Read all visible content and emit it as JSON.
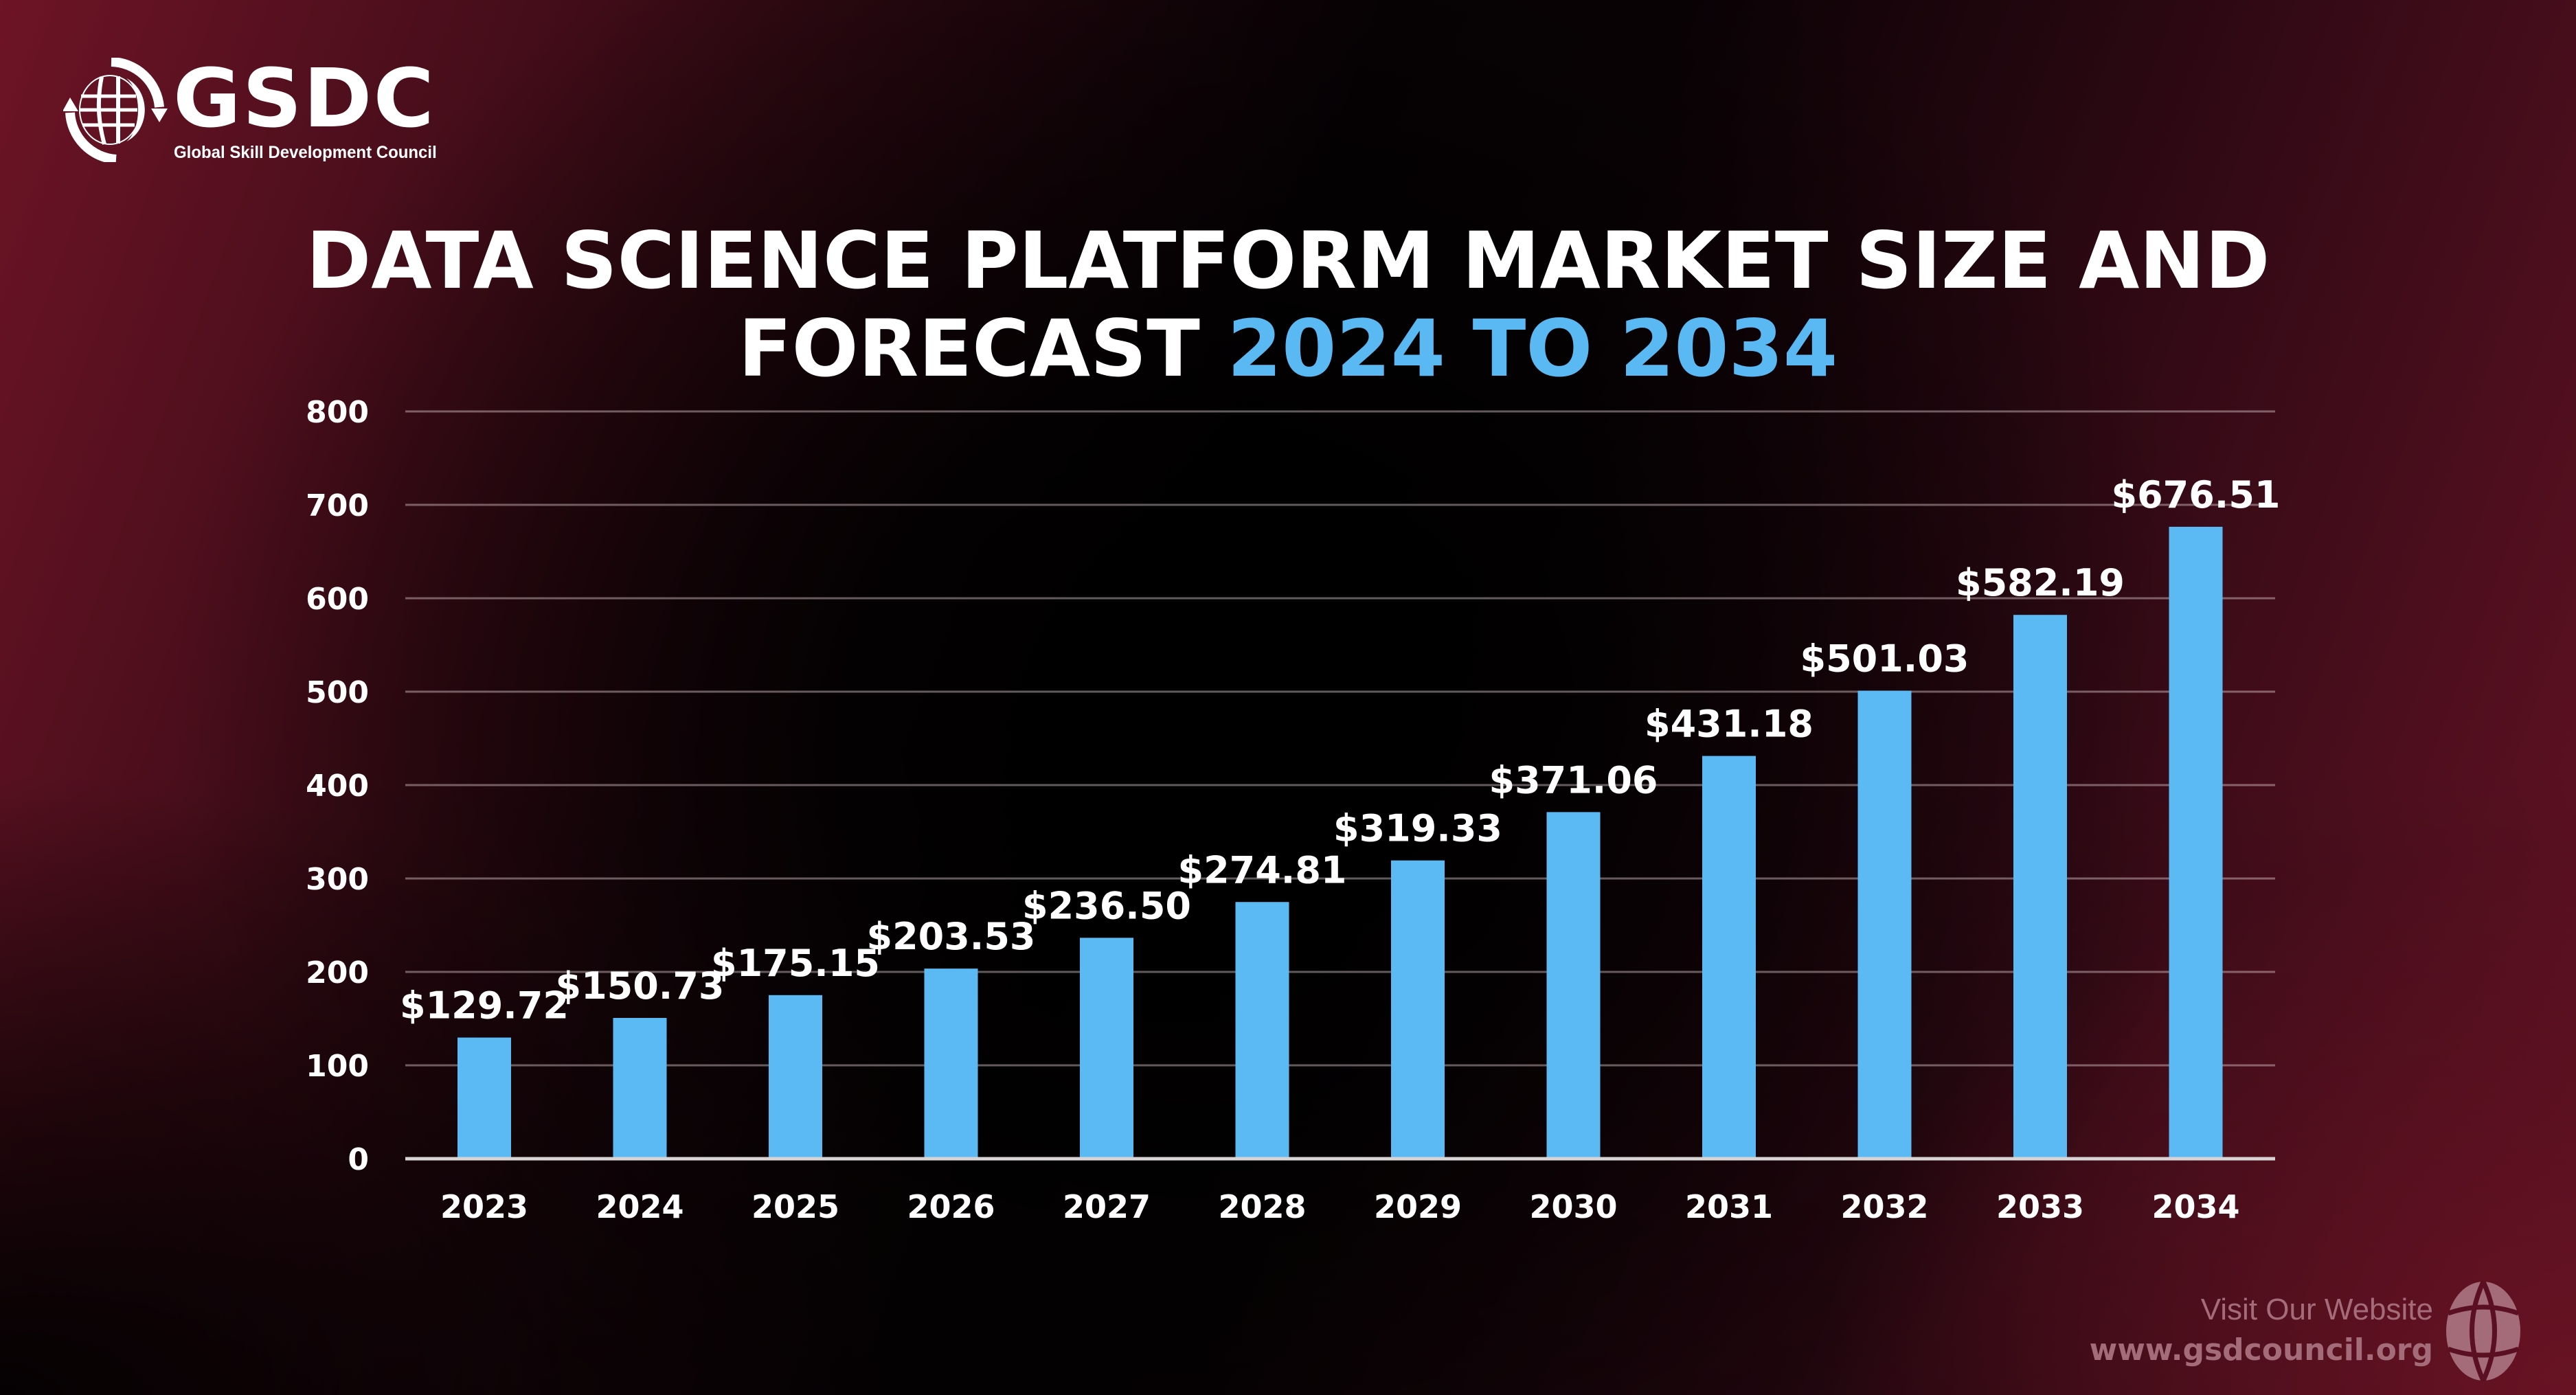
{
  "brand": {
    "logo_text": "GSDC",
    "logo_subtitle": "Global Skill Development Council",
    "logo_icon": "globe-with-arrows-icon"
  },
  "colors": {
    "bar": "#5bbaf3",
    "title_highlight": "#5ab9f2",
    "text": "#ffffff",
    "footer_text": "#a46c78",
    "background_accent": "#6d1426"
  },
  "title": {
    "line1": "DATA SCIENCE PLATFORM MARKET SIZE AND",
    "line2_prefix": "FORECAST ",
    "line2_highlight": "2024 TO 2034"
  },
  "chart_data": {
    "type": "bar",
    "title": "DATA SCIENCE PLATFORM MARKET SIZE AND FORECAST 2024 TO 2034",
    "xlabel": "",
    "ylabel": "",
    "categories": [
      "2023",
      "2024",
      "2025",
      "2026",
      "2027",
      "2028",
      "2029",
      "2030",
      "2031",
      "2032",
      "2033",
      "2034"
    ],
    "values": [
      129.72,
      150.73,
      175.15,
      203.53,
      236.5,
      274.81,
      319.33,
      371.06,
      431.18,
      501.03,
      582.19,
      676.51
    ],
    "value_labels": [
      "$129.72",
      "$150.73",
      "$175.15",
      "$203.53",
      "$236.50",
      "$274.81",
      "$319.33",
      "$371.06",
      "$431.18",
      "$501.03",
      "$582.19",
      "$676.51"
    ],
    "ylim": [
      0,
      800
    ],
    "yticks": [
      0,
      100,
      200,
      300,
      400,
      500,
      600,
      700,
      800
    ],
    "grid": true,
    "legend": "none"
  },
  "footer": {
    "visit_label": "Visit Our Website",
    "url": "www.gsdcouncil.org",
    "icon": "globe-icon"
  }
}
